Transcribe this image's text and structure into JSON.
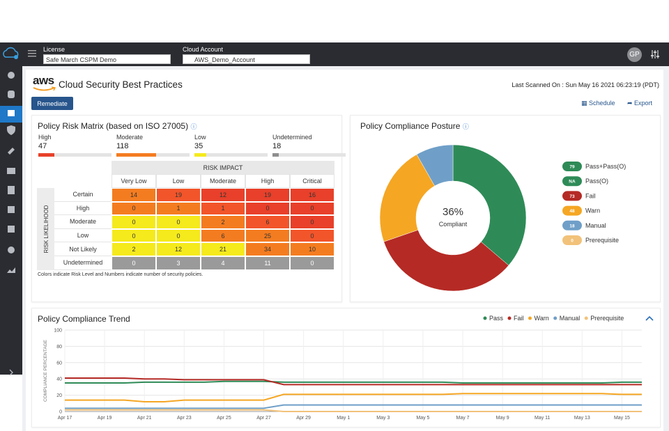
{
  "topbar": {
    "license_label": "License",
    "license_value": "Safe March CSPM Demo",
    "account_label": "Cloud Account",
    "account_value": "AWS_Demo_Account",
    "avatar": "GP"
  },
  "header": {
    "logo": "aws",
    "title": "Cloud Security Best Practices",
    "last_scanned": "Last Scanned On : Sun May 16 2021 06:23:19 (PDT)",
    "remediate": "Remediate",
    "schedule": "Schedule",
    "export": "Export"
  },
  "risk_matrix": {
    "title": "Policy Risk Matrix (based on ISO 27005)",
    "summary": [
      {
        "label": "High",
        "value": 47,
        "color": "#e8402a"
      },
      {
        "label": "Moderate",
        "value": 118,
        "color": "#f47c20"
      },
      {
        "label": "Low",
        "value": 35,
        "color": "#f5ea1c"
      },
      {
        "label": "Undetermined",
        "value": 18,
        "color": "#8e8e8e"
      }
    ],
    "impact_label": "RISK IMPACT",
    "likelihood_label": "RISK LIKELIHOOD",
    "columns": [
      "Very Low",
      "Low",
      "Moderate",
      "High",
      "Critical"
    ],
    "rows": [
      "Certain",
      "High",
      "Moderate",
      "Low",
      "Not Likely",
      "Undetermined"
    ],
    "cells": [
      [
        14,
        19,
        12,
        19,
        16
      ],
      [
        0,
        1,
        1,
        0,
        0
      ],
      [
        0,
        0,
        2,
        6,
        0
      ],
      [
        0,
        0,
        6,
        25,
        0
      ],
      [
        2,
        12,
        21,
        34,
        10
      ],
      [
        0,
        3,
        4,
        11,
        0
      ]
    ],
    "cell_colors": [
      [
        "#f47c20",
        "#f2552a",
        "#e8402a",
        "#e8402a",
        "#e8402a"
      ],
      [
        "#f47c20",
        "#f47c20",
        "#f2552a",
        "#e8402a",
        "#e8402a"
      ],
      [
        "#f5ea1c",
        "#f5ea1c",
        "#f47c20",
        "#f2552a",
        "#e8402a"
      ],
      [
        "#f5ea1c",
        "#f5ea1c",
        "#f47c20",
        "#f47c20",
        "#f2552a"
      ],
      [
        "#f5ea1c",
        "#f5ea1c",
        "#f5ea1c",
        "#f47c20",
        "#f47c20"
      ],
      [
        "#9a9a9a",
        "#9a9a9a",
        "#9a9a9a",
        "#9a9a9a",
        "#9a9a9a"
      ]
    ],
    "note": "Colors indicate Risk Level and Numbers indicate number of security policies."
  },
  "chart_data": [
    {
      "type": "donut",
      "title": "Policy Compliance Posture",
      "categories": [
        "Pass+Pass(O)",
        "Pass(O)",
        "Fail",
        "Warn",
        "Manual",
        "Prerequisite"
      ],
      "values": [
        79,
        null,
        73,
        48,
        18,
        0
      ],
      "value_labels": [
        "79",
        "NA",
        "73",
        "48",
        "18",
        "0"
      ],
      "colors": [
        "#2e8b57",
        "#2e8b57",
        "#b52a25",
        "#f5a623",
        "#6f9fc8",
        "#f2c27a"
      ],
      "center_label": "36%",
      "center_caption": "Compliant"
    },
    {
      "type": "line",
      "title": "Policy Compliance Trend",
      "y_label": "COMPLIANCE PERCENTAGE",
      "categories": [
        "Apr 17",
        null,
        "Apr 19",
        null,
        "Apr 21",
        null,
        "Apr 23",
        null,
        "Apr 25",
        null,
        "Apr 27",
        null,
        "Apr 29",
        null,
        "May 1",
        null,
        "May 3",
        null,
        "May 5",
        null,
        "May 7",
        null,
        "May 9",
        null,
        "May 11",
        null,
        "May 13",
        null,
        "May 15",
        null
      ],
      "series": [
        {
          "name": "Pass",
          "color": "#2e8b57",
          "values": [
            35,
            35,
            35,
            35,
            36,
            36,
            36,
            36,
            37,
            37,
            37,
            36,
            36,
            36,
            36,
            36,
            36,
            36,
            36,
            36,
            35,
            35,
            35,
            35,
            35,
            35,
            35,
            35,
            36,
            36
          ]
        },
        {
          "name": "Fail",
          "color": "#b52a25",
          "values": [
            41,
            41,
            41,
            41,
            40,
            40,
            39,
            39,
            39,
            39,
            39,
            33,
            33,
            33,
            33,
            33,
            33,
            33,
            33,
            33,
            33,
            33,
            33,
            33,
            33,
            33,
            33,
            33,
            33,
            33
          ]
        },
        {
          "name": "Warn",
          "color": "#f5a623",
          "values": [
            14,
            14,
            14,
            14,
            12,
            12,
            14,
            14,
            14,
            14,
            14,
            21,
            21,
            21,
            21,
            21,
            21,
            21,
            21,
            21,
            22,
            22,
            22,
            22,
            22,
            22,
            22,
            22,
            21,
            21
          ]
        },
        {
          "name": "Manual",
          "color": "#6f9fc8",
          "values": [
            4,
            4,
            4,
            4,
            4,
            4,
            4,
            4,
            4,
            4,
            4,
            8,
            8,
            8,
            8,
            8,
            8,
            8,
            8,
            8,
            8,
            8,
            8,
            8,
            8,
            8,
            8,
            8,
            8,
            8
          ]
        },
        {
          "name": "Prerequisite",
          "color": "#f2c27a",
          "values": [
            2,
            2,
            2,
            2,
            2,
            2,
            2,
            2,
            2,
            2,
            2,
            0,
            0,
            0,
            0,
            0,
            0,
            0,
            0,
            0,
            0,
            0,
            0,
            0,
            0,
            0,
            0,
            0,
            0,
            0
          ]
        }
      ],
      "ylim": [
        0,
        100
      ],
      "yticks": [
        0,
        20,
        40,
        60,
        80,
        100
      ],
      "grid": true,
      "legend": "top-right"
    }
  ]
}
